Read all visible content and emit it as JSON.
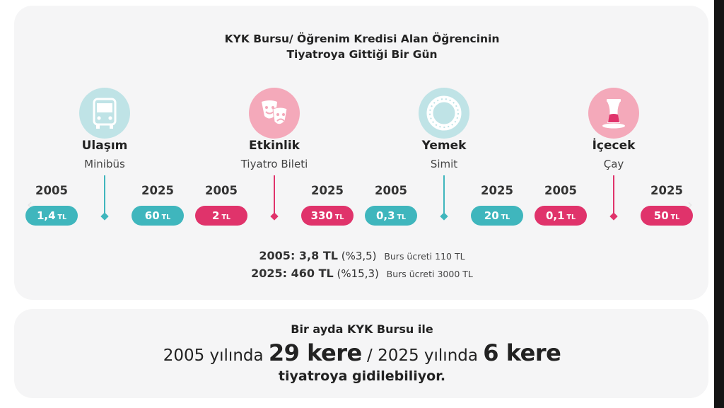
{
  "title": {
    "line1": "KYK Bursu/ Öğrenim Kredisi Alan Öğrencinin",
    "line2": "Tiyatroya Gittiği Bir Gün"
  },
  "colors": {
    "teal": "#3fb6bd",
    "pink": "#e0336b",
    "teal_light": "#bfe3e6",
    "pink_light": "#f4a9ba"
  },
  "items": [
    {
      "category": "Ulaşım",
      "item": "Minibüs",
      "year_a": "2005",
      "year_b": "2025",
      "price_a": "1,4",
      "price_b": "60",
      "unit": "TL",
      "color": "teal",
      "icon": "bus-icon"
    },
    {
      "category": "Etkinlik",
      "item": "Tiyatro Bileti",
      "year_a": "2005",
      "year_b": "2025",
      "price_a": "2",
      "price_b": "330",
      "unit": "TL",
      "color": "pink",
      "icon": "theater-masks-icon"
    },
    {
      "category": "Yemek",
      "item": "Simit",
      "year_a": "2005",
      "year_b": "2025",
      "price_a": "0,3",
      "price_b": "20",
      "unit": "TL",
      "color": "teal",
      "icon": "simit-icon"
    },
    {
      "category": "İçecek",
      "item": "Çay",
      "year_a": "2005",
      "year_b": "2025",
      "price_a": "0,1",
      "price_b": "50",
      "unit": "TL",
      "color": "pink",
      "icon": "tea-glass-icon"
    }
  ],
  "summary": [
    {
      "main": "2005: 3,8 TL",
      "pct": "(%3,5)",
      "note": "Burs ücreti 110 TL"
    },
    {
      "main": "2025: 460 TL",
      "pct": "(%15,3)",
      "note": "Burs ücreti 3000 TL"
    }
  ],
  "bottom": {
    "line1": "Bir ayda KYK Bursu ile",
    "part_a": "2005 yılında",
    "count_a": "29 kere",
    "separator": "/",
    "part_b": "2025 yılında",
    "count_b": "6 kere",
    "line3": "tiyatroya gidilebiliyor."
  },
  "nav": {
    "prev": "‹",
    "next": "›"
  }
}
